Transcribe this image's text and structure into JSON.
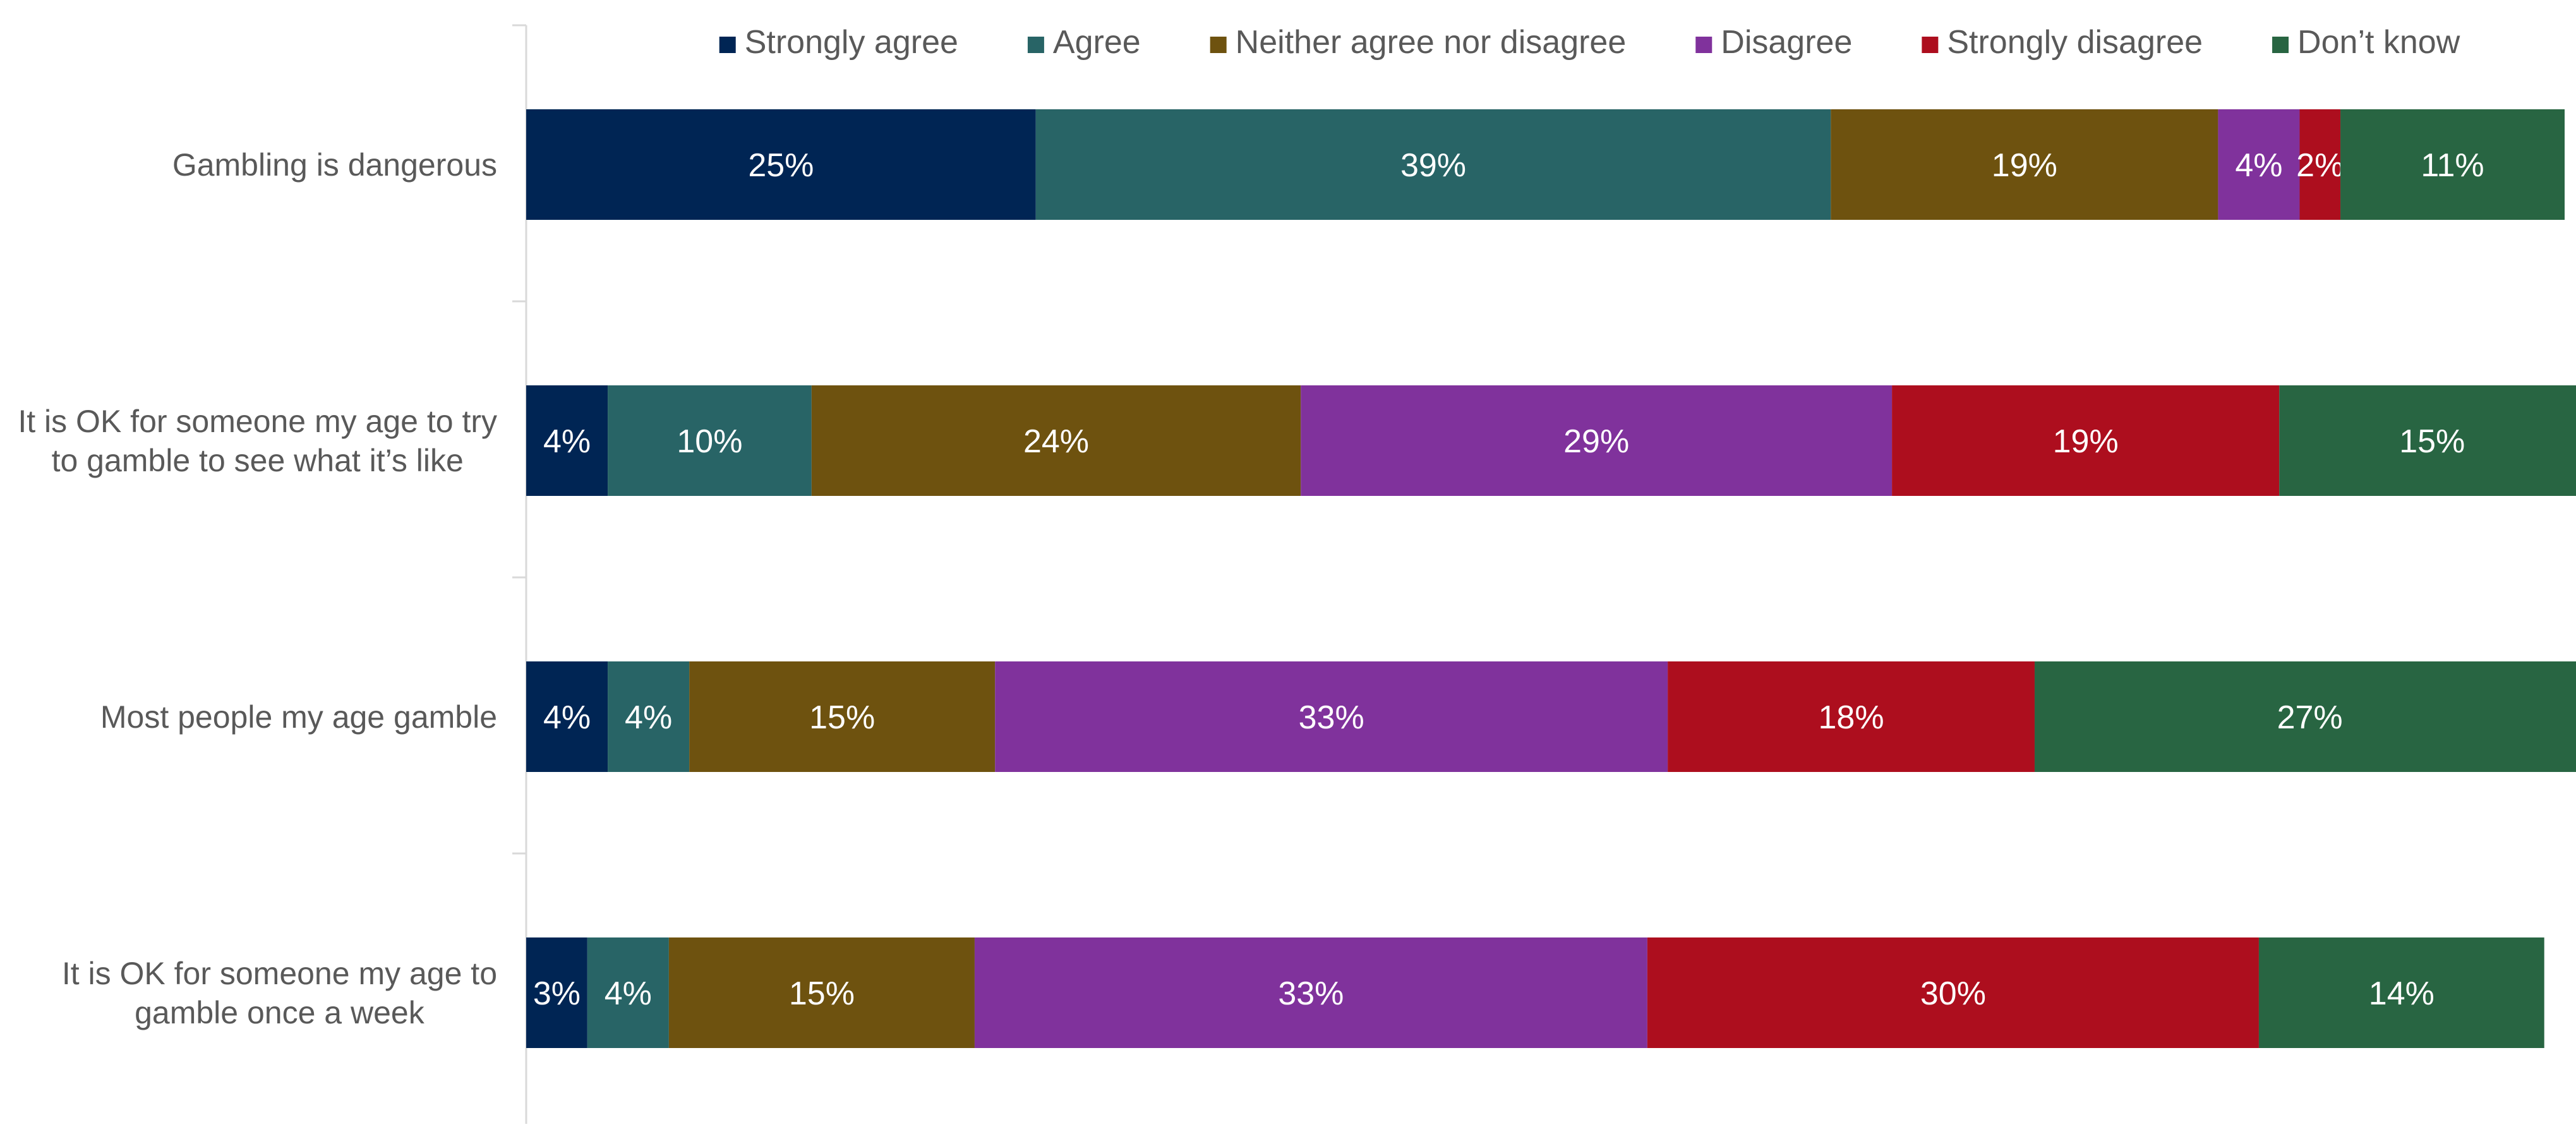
{
  "chart_data": {
    "type": "bar",
    "orientation": "horizontal",
    "stacked": true,
    "title": "",
    "xlabel": "",
    "ylabel": "",
    "xlim": [
      0,
      100
    ],
    "grid": false,
    "legend_position": "top",
    "value_format": "{v}%",
    "categories": [
      "Gambling is dangerous",
      "It is OK for someone my age to try to gamble to see what it’s like",
      "Most people my age gamble",
      "It is OK for someone my age to gamble once a week"
    ],
    "series": [
      {
        "name": "Strongly agree",
        "color": "#002554",
        "text_color": "#ffffff",
        "values": [
          25,
          4,
          4,
          3
        ]
      },
      {
        "name": "Agree",
        "color": "#286466",
        "text_color": "#ffffff",
        "values": [
          39,
          10,
          4,
          4
        ]
      },
      {
        "name": "Neither agree nor disagree",
        "color": "#6e520f",
        "text_color": "#ffffff",
        "values": [
          19,
          24,
          15,
          15
        ]
      },
      {
        "name": "Disagree",
        "color": "#80329c",
        "text_color": "#ffffff",
        "values": [
          4,
          29,
          33,
          33
        ]
      },
      {
        "name": "Strongly disagree",
        "color": "#ad0e1e",
        "text_color": "#ffffff",
        "values": [
          2,
          19,
          18,
          30
        ]
      },
      {
        "name": "Don’t know",
        "color": "#286542",
        "text_color": "#ffffff",
        "values": [
          11,
          15,
          27,
          14
        ]
      }
    ]
  },
  "colors": {
    "axis_line": "#d9d9d9",
    "category_text": "#595959",
    "legend_text": "#595959",
    "background": "#ffffff"
  }
}
